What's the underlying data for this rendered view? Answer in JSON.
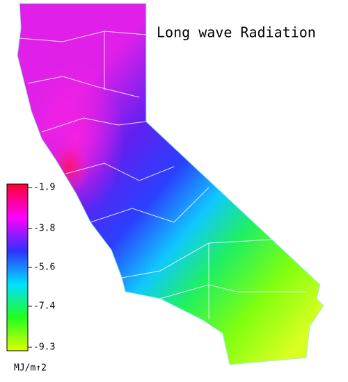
{
  "title": "Long wave Radiation",
  "colorbar": {
    "ticks": [
      -1.9,
      -3.8,
      -5.6,
      -7.4,
      -9.3
    ],
    "lim": [
      -1.9,
      -9.3
    ],
    "colors": [
      "#ff0030",
      "#ff00ff",
      "#3030ff",
      "#00e0ff",
      "#20ff20",
      "#e0ff00"
    ],
    "unit": "MJ/m↑2"
  }
}
